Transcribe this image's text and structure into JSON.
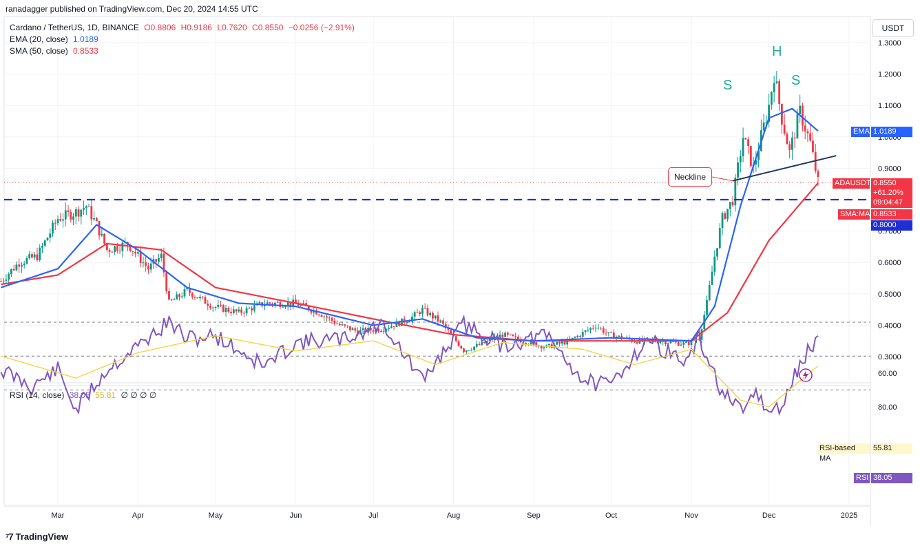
{
  "publisher": "ranadagger published on TradingView.com, Dec 20, 2024 14:55 UTC",
  "legend": {
    "title": "Cardano / TetherUS, 1D, BINANCE",
    "open": "O0.8806",
    "high": "H0.9186",
    "low": "L0.7620",
    "close": "C0.8550",
    "change": "−0.0256 (−2.91%)",
    "ema_label": "EMA (20, close)",
    "ema_value": "1.0189",
    "sma_label": "SMA (50, close)",
    "sma_value": "0.8533",
    "rsi_label": "RSI (14, close)",
    "rsi_value": "38.05",
    "rsi_ma_value": "55.81",
    "rsi_extra": "∅ ∅ ∅ ∅"
  },
  "currency_button": "USDT",
  "annotations": {
    "left_shoulder": "S",
    "head": "H",
    "right_shoulder": "S",
    "neckline": "Neckline"
  },
  "price_labels": {
    "ema": {
      "name": "EMA",
      "value": "1.0189"
    },
    "last": {
      "name": "ADAUSDT",
      "value": "0.8550",
      "change": "+61.20%",
      "countdown": "09:04:47"
    },
    "sma": {
      "name": "SMA:MA",
      "value": "0.8533"
    },
    "level": "0.8000",
    "rsi_ma": {
      "name": "RSI-based MA",
      "value": "55.81"
    },
    "rsi": {
      "name": "RSI",
      "value": "38.05"
    }
  },
  "footer_logo": "TradingView",
  "colors": {
    "up": "#089981",
    "down": "#f23645",
    "ema": "#2962ff",
    "sma": "#f23645",
    "rsi": "#7e57c2",
    "rsi_ma": "#f7d441",
    "dash": "#1e2fd6",
    "neckline": "#1e3a5f"
  },
  "chart_data": [
    {
      "type": "candlestick",
      "title": "Cardano / TetherUS, 1D, BINANCE",
      "x_ticks": [
        "Mar",
        "Apr",
        "May",
        "Jun",
        "Jul",
        "Aug",
        "Sep",
        "Oct",
        "Nov",
        "Dec",
        "2025"
      ],
      "y_ticks": [
        "0.3000",
        "0.4000",
        "0.5000",
        "0.6000",
        "0.7000",
        "0.8000",
        "0.9000",
        "1.0000",
        "1.1000",
        "1.2000",
        "1.3000"
      ],
      "ylim": [
        0.22,
        1.34
      ],
      "horizontal_level": 0.8,
      "neckline": {
        "from": [
          "Nov 17",
          0.86
        ],
        "to": [
          "Dec 27",
          0.94
        ]
      },
      "series": [
        {
          "name": "ADAUSDT close",
          "x": [
            "Feb 8",
            "Feb 15",
            "Feb 22",
            "Mar 1",
            "Mar 8",
            "Mar 12",
            "Mar 16",
            "Mar 20",
            "Mar 28",
            "Apr 5",
            "Apr 10",
            "Apr 13",
            "Apr 20",
            "Apr 30",
            "May 10",
            "May 20",
            "Jun 1",
            "Jun 10",
            "Jun 18",
            "Jun 25",
            "Jul 5",
            "Jul 15",
            "Jul 20",
            "Jul 27",
            "Aug 3",
            "Aug 5",
            "Aug 12",
            "Aug 20",
            "Aug 28",
            "Sep 6",
            "Sep 15",
            "Sep 25",
            "Sep 30",
            "Oct 10",
            "Oct 20",
            "Oct 30",
            "Nov 4",
            "Nov 7",
            "Nov 10",
            "Nov 13",
            "Nov 17",
            "Nov 21",
            "Nov 25",
            "Dec 1",
            "Dec 3",
            "Dec 6",
            "Dec 9",
            "Dec 13",
            "Dec 17",
            "Dec 20"
          ],
          "values": [
            0.54,
            0.6,
            0.62,
            0.74,
            0.76,
            0.78,
            0.72,
            0.64,
            0.66,
            0.58,
            0.62,
            0.47,
            0.51,
            0.46,
            0.44,
            0.47,
            0.47,
            0.44,
            0.4,
            0.38,
            0.39,
            0.42,
            0.45,
            0.41,
            0.34,
            0.32,
            0.34,
            0.37,
            0.35,
            0.33,
            0.35,
            0.4,
            0.37,
            0.35,
            0.35,
            0.34,
            0.36,
            0.47,
            0.62,
            0.74,
            0.8,
            1.0,
            0.9,
            1.1,
            1.2,
            1.06,
            0.95,
            1.08,
            0.98,
            0.855
          ]
        },
        {
          "name": "EMA (20, close)",
          "x": [
            "Feb 8",
            "Mar 1",
            "Mar 16",
            "Apr 1",
            "Apr 20",
            "May 10",
            "Jun 1",
            "Jul 1",
            "Jul 20",
            "Aug 10",
            "Sep 1",
            "Oct 1",
            "Nov 1",
            "Nov 10",
            "Nov 20",
            "Dec 1",
            "Dec 10",
            "Dec 20"
          ],
          "values": [
            0.52,
            0.58,
            0.72,
            0.64,
            0.52,
            0.47,
            0.46,
            0.4,
            0.42,
            0.36,
            0.35,
            0.36,
            0.35,
            0.46,
            0.78,
            1.06,
            1.09,
            1.0189
          ]
        },
        {
          "name": "SMA (50, close)",
          "x": [
            "Feb 8",
            "Mar 1",
            "Mar 20",
            "Apr 10",
            "May 1",
            "Jun 1",
            "Jul 1",
            "Aug 1",
            "Sep 1",
            "Oct 1",
            "Nov 1",
            "Nov 15",
            "Dec 1",
            "Dec 20"
          ],
          "values": [
            0.53,
            0.56,
            0.66,
            0.64,
            0.52,
            0.47,
            0.42,
            0.37,
            0.35,
            0.35,
            0.35,
            0.44,
            0.67,
            0.8533
          ]
        }
      ]
    },
    {
      "type": "line",
      "title": "RSI (14, close)",
      "y_ticks": [
        "60.00",
        "80.00"
      ],
      "bands": [
        30,
        50,
        70
      ],
      "series": [
        {
          "name": "RSI",
          "x": [
            "Feb 8",
            "Feb 20",
            "Mar 1",
            "Mar 8",
            "Mar 20",
            "Apr 1",
            "Apr 13",
            "Apr 20",
            "May 1",
            "May 20",
            "Jun 1",
            "Jun 20",
            "Jul 5",
            "Jul 20",
            "Aug 5",
            "Aug 20",
            "Sep 6",
            "Sep 20",
            "Sep 30",
            "Oct 15",
            "Oct 30",
            "Nov 4",
            "Nov 13",
            "Nov 21",
            "Nov 25",
            "Dec 1",
            "Dec 6",
            "Dec 13",
            "Dec 20"
          ],
          "values": [
            58,
            68,
            58,
            82,
            58,
            44,
            30,
            40,
            38,
            56,
            42,
            40,
            31,
            65,
            31,
            44,
            38,
            64,
            68,
            40,
            54,
            40,
            72,
            85,
            70,
            84,
            80,
            55,
            38.05
          ]
        },
        {
          "name": "RSI-based MA",
          "x": [
            "Feb 8",
            "Mar 8",
            "Apr 1",
            "May 1",
            "Jun 1",
            "Jul 1",
            "Jul 25",
            "Aug 20",
            "Sep 20",
            "Oct 10",
            "Nov 1",
            "Nov 20",
            "Dec 1",
            "Dec 20"
          ],
          "values": [
            50,
            63,
            48,
            38,
            47,
            41,
            55,
            42,
            46,
            55,
            46,
            76,
            80,
            55.81
          ]
        }
      ]
    }
  ]
}
